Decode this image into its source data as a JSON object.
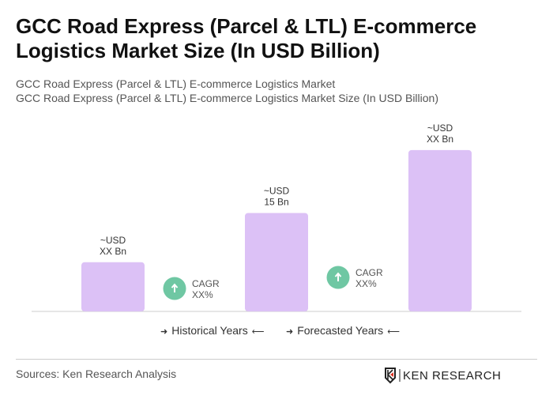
{
  "title": "GCC Road Express (Parcel & LTL) E-commerce Logistics Market Size (In USD Billion)",
  "subtitle1": "GCC Road Express (Parcel & LTL) E-commerce Logistics Market",
  "subtitle2": "GCC Road Express (Parcel & LTL) E-commerce Logistics Market Size (In USD Billion)",
  "chart_data": {
    "type": "bar",
    "categories": [
      "",
      "",
      ""
    ],
    "values": [
      7.5,
      15,
      24.6
    ],
    "data_labels": [
      [
        "~USD",
        "XX Bn"
      ],
      [
        "~USD",
        "15 Bn"
      ],
      [
        "~USD",
        "XX Bn"
      ]
    ],
    "cagr": [
      {
        "label": "CAGR",
        "value": "XX%"
      },
      {
        "label": "CAGR",
        "value": "XX%"
      }
    ],
    "bar_color": "#dcc1f6",
    "cagr_color": "#6fc7a3",
    "grid": false
  },
  "legend": {
    "historical": "Historical Years",
    "forecasted": "Forecasted Years"
  },
  "sources": "Sources: Ken Research Analysis",
  "logo_text": "KEN RESEARCH"
}
